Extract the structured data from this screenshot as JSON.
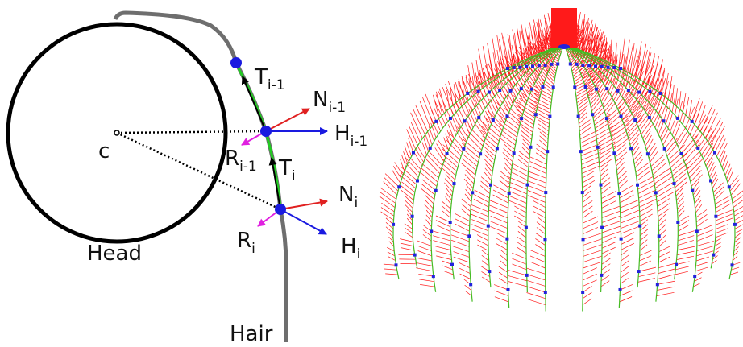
{
  "labels": {
    "center": "c",
    "head": "Head",
    "hair": "Hair",
    "t_prev": {
      "base": "T",
      "sub": "i-1"
    },
    "n_prev": {
      "base": "N",
      "sub": "i-1"
    },
    "h_prev": {
      "base": "H",
      "sub": "i-1"
    },
    "r_prev": {
      "base": "R",
      "sub": "i-1"
    },
    "t_cur": {
      "base": "T",
      "sub": "i"
    },
    "n_cur": {
      "base": "N",
      "sub": "i"
    },
    "r_cur": {
      "base": "R",
      "sub": "i"
    },
    "h_cur": {
      "base": "H",
      "sub": "i"
    }
  }
}
